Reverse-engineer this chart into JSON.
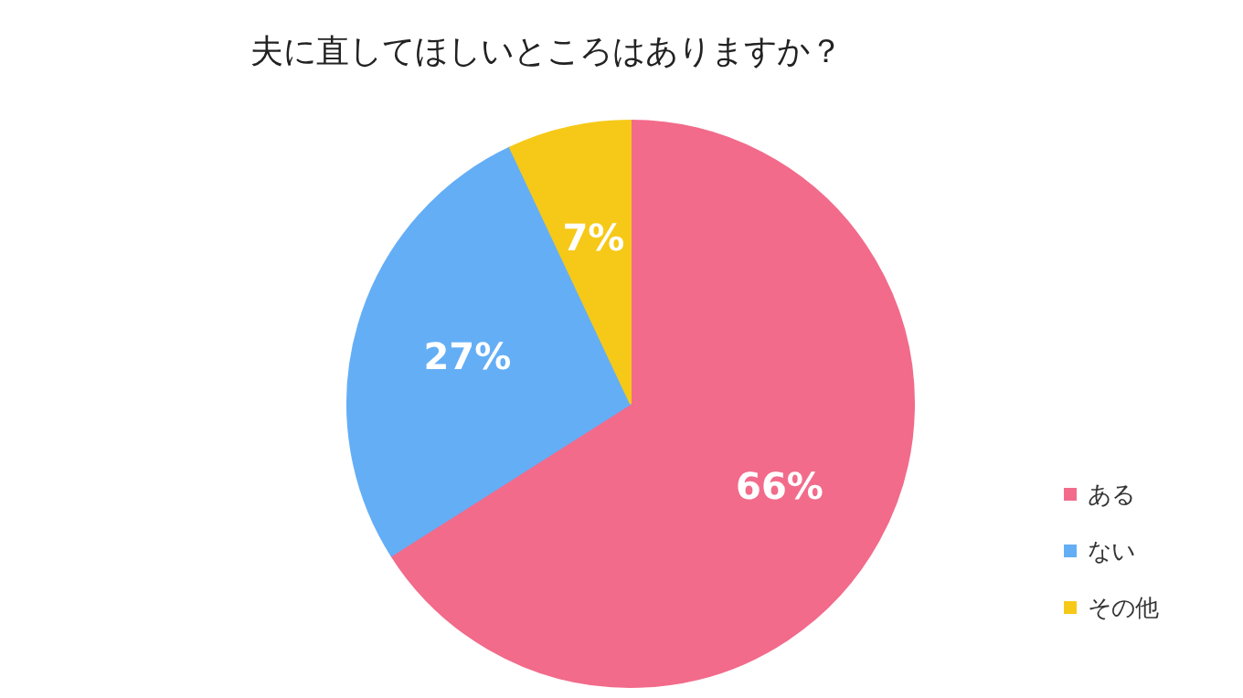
{
  "chart_data": {
    "type": "pie",
    "title": "夫に直してほしいところはありますか？",
    "categories": [
      "ある",
      "ない",
      "その他"
    ],
    "values": [
      66,
      27,
      7
    ],
    "colors": [
      "#f26b8b",
      "#64aef6",
      "#f6c918"
    ],
    "value_labels": [
      "66%",
      "27%",
      "7%"
    ],
    "legend": "right"
  }
}
